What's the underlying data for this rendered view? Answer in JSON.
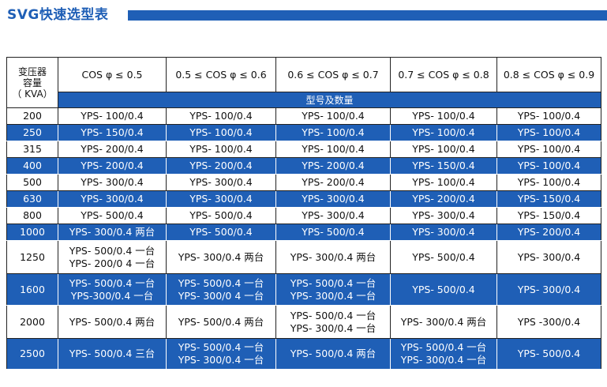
{
  "title": "SVG快速选型表",
  "header": {
    "capacity_label": [
      "变压器",
      "容量",
      "（ KVA）"
    ],
    "columns": [
      "COS φ ≤ 0.5",
      "0.5 ≤ COS φ ≤ 0.6",
      "0.6 ≤ COS φ ≤ 0.7",
      "0.7 ≤ COS φ ≤ 0.8",
      "0.8 ≤ COS φ ≤ 0.9"
    ],
    "subheader": "型号及数量"
  },
  "rows": [
    {
      "capacity": "200",
      "highlight": false,
      "cells": [
        [
          "YPS- 100/0.4"
        ],
        [
          "YPS- 100/0.4"
        ],
        [
          "YPS- 100/0.4"
        ],
        [
          "YPS- 100/0.4"
        ],
        [
          "YPS- 100/0.4"
        ]
      ]
    },
    {
      "capacity": "250",
      "highlight": true,
      "cells": [
        [
          "YPS- 150/0.4"
        ],
        [
          "YPS- 100/0.4"
        ],
        [
          "YPS- 100/0.4"
        ],
        [
          "YPS- 100/0.4"
        ],
        [
          "YPS- 100/0.4"
        ]
      ]
    },
    {
      "capacity": "315",
      "highlight": false,
      "cells": [
        [
          "YPS- 200/0.4"
        ],
        [
          "YPS- 100/0.4"
        ],
        [
          "YPS- 100/0.4"
        ],
        [
          "YPS- 100/0.4"
        ],
        [
          "YPS- 100/0.4"
        ]
      ]
    },
    {
      "capacity": "400",
      "highlight": true,
      "cells": [
        [
          "YPS- 200/0.4"
        ],
        [
          "YPS- 200/0.4"
        ],
        [
          "YPS- 200/0.4"
        ],
        [
          "YPS- 150/0.4"
        ],
        [
          "YPS- 100/0.4"
        ]
      ]
    },
    {
      "capacity": "500",
      "highlight": false,
      "cells": [
        [
          "YPS- 300/0.4"
        ],
        [
          "YPS- 300/0.4"
        ],
        [
          "YPS- 200/0.4"
        ],
        [
          "YPS- 100/0.4"
        ],
        [
          "YPS- 100/0.4"
        ]
      ]
    },
    {
      "capacity": "630",
      "highlight": true,
      "cells": [
        [
          "YPS- 300/0.4"
        ],
        [
          "YPS- 300/0.4"
        ],
        [
          "YPS- 300/0.4"
        ],
        [
          "YPS- 200/0.4"
        ],
        [
          "YPS- 150/0.4"
        ]
      ]
    },
    {
      "capacity": "800",
      "highlight": false,
      "cells": [
        [
          "YPS- 500/0.4"
        ],
        [
          "YPS- 500/0.4"
        ],
        [
          "YPS- 300/0.4"
        ],
        [
          "YPS- 300/0.4"
        ],
        [
          "YPS- 150/0.4"
        ]
      ]
    },
    {
      "capacity": "1000",
      "highlight": true,
      "cells": [
        [
          "YPS- 300/0.4 两台"
        ],
        [
          "YPS- 500/0.4"
        ],
        [
          "YPS- 500/0.4"
        ],
        [
          "YPS- 300/0.4"
        ],
        [
          "YPS- 200/0.4"
        ]
      ]
    },
    {
      "capacity": "1250",
      "highlight": false,
      "cells": [
        [
          "YPS- 500/0.4 一台",
          "YPS- 200/0 4 一台"
        ],
        [
          "YPS- 300/0.4 两台"
        ],
        [
          "YPS- 300/0.4 两台"
        ],
        [
          "YPS- 500/0.4"
        ],
        [
          "YPS- 300/0.4"
        ]
      ]
    },
    {
      "capacity": "1600",
      "highlight": true,
      "cells": [
        [
          "YPS- 500/0.4 一台",
          "YPS-300/0.4 一台"
        ],
        [
          "YPS- 500/0.4 一台",
          "YPS- 300/0 4 一台"
        ],
        [
          "YPS- 500/0.4 一台",
          "YPS- 300/0.4 一台"
        ],
        [
          "YPS- 500/0.4"
        ],
        [
          "YPS- 300/0.4"
        ]
      ]
    },
    {
      "capacity": "2000",
      "highlight": false,
      "cells": [
        [
          "YPS- 500/0.4 两台"
        ],
        [
          "YPS- 500/0.4 两台"
        ],
        [
          "YPS- 500/0.4 一台",
          "YPS- 300/0.4 一台"
        ],
        [
          "YPS- 300/0.4 两台"
        ],
        [
          "YPS -300/0.4"
        ]
      ]
    },
    {
      "capacity": "2500",
      "highlight": true,
      "cells": [
        [
          "YPS- 500/0.4 三台"
        ],
        [
          "YPS- 500/0.4 一台",
          "YPS- 300/0.4 一台"
        ],
        [
          "YPS- 500/0.4 两台"
        ],
        [
          "YPS- 500/0.4 一台",
          "YPS- 300/0.4 一台"
        ],
        [
          "YPS- 500/0.4"
        ]
      ]
    }
  ]
}
